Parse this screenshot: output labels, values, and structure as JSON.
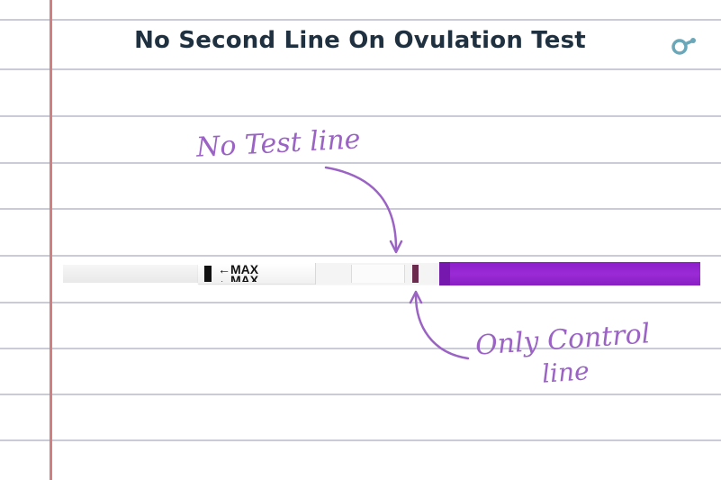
{
  "title": "No Second Line On Ovulation Test",
  "brand": {
    "logo_icon": "brand-logo-icon",
    "logo_color": "#6aa7b8"
  },
  "annotations": {
    "test_line": "No Test line",
    "control_line_1": "Only Control",
    "control_line_2": "line"
  },
  "strip": {
    "label": "MAX",
    "arrow_glyph": "←",
    "test_line_visible": false,
    "control_line_visible": true
  },
  "colors": {
    "title": "#1f3140",
    "annotation": "#9a63c4",
    "margin_line": "#d27f7f",
    "rule_line": "#c9cbd6",
    "control_line": "#6a2b4f",
    "wick": "#9a2ad6"
  }
}
